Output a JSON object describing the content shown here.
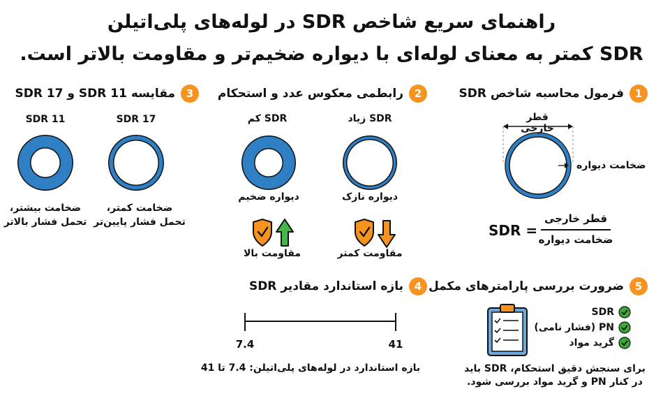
{
  "header": {
    "title_line1": "راهنمای سریع شاخص SDR در لوله‌های پلی‌اتیلن",
    "title_line2": "SDR کمتر به معنای لوله‌ای با دیواره ضخیم‌تر و مقاومت بالاتر است."
  },
  "colors": {
    "pipe_blue": "#2e7fc3",
    "accent_orange": "#f7931e",
    "check_green": "#3aa935",
    "arrow_green": "#45b649"
  },
  "sections": {
    "s1": {
      "badge": "1",
      "title": "فرمول محاسبه شاخص SDR",
      "outer_diameter_label": "قطر خارجی",
      "wall_thickness_label": "ضخامت دیواره",
      "formula_lhs": "SDR =",
      "formula_numerator": "قطر خارجی",
      "formula_denominator": "ضخامت دیواره"
    },
    "s2": {
      "badge": "2",
      "title": "رابطمی معکوس عدد و استحکام",
      "high_sdr": {
        "label": "SDR زیاد",
        "wall": "دیواره نازک",
        "resistance": "مقاومت کمتر",
        "icon": "arrow-down-icon"
      },
      "low_sdr": {
        "label": "SDR کم",
        "wall": "دیواره ضخیم",
        "resistance": "مقاومت بالا",
        "icon": "arrow-up-icon"
      }
    },
    "s3": {
      "badge": "3",
      "title": "مقایسه SDR 11 و SDR 17",
      "sdr17": {
        "label": "SDR 17",
        "desc1": "ضخامت کمتر،",
        "desc2": "تحمل فشار پایین‌تر"
      },
      "sdr11": {
        "label": "SDR 11",
        "desc1": "ضخامت بیشتر،",
        "desc2": "تحمل فشار بالاتر"
      }
    },
    "s4": {
      "badge": "4",
      "title": "بازه استاندارد مقادیر SDR",
      "range_min": "7.4",
      "range_max": "41",
      "caption": "بازه استاندارد در لوله‌های پلی‌اتیلن: 7.4 تا 41"
    },
    "s5": {
      "badge": "5",
      "title": "ضرورت بررسی پارامترهای مکمل",
      "checklist": [
        "SDR",
        "PN (فشار نامی)",
        "گرید مواد"
      ],
      "note_line1": "برای سنجش دقیق استحکام، SDR باید",
      "note_line2": "در کنار PN و گرید مواد بررسی شود."
    }
  }
}
